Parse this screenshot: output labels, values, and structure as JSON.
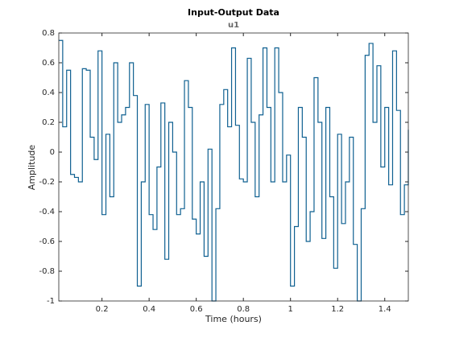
{
  "chart_data": {
    "type": "stairs",
    "title": "Input-Output Data",
    "subtitle": "u1",
    "xlabel": "Time (hours)",
    "ylabel": "Amplitude",
    "color": "#0f6091",
    "xlim": [
      0.0167,
      1.5
    ],
    "ylim": [
      -1,
      0.8
    ],
    "xticks": [
      0.2,
      0.4,
      0.6,
      0.8,
      1,
      1.2,
      1.4
    ],
    "yticks": [
      -1,
      -0.8,
      -0.6,
      -0.4,
      -0.2,
      0,
      0.2,
      0.4,
      0.6,
      0.8
    ],
    "x": [
      0.0167,
      0.0333,
      0.05,
      0.0667,
      0.0833,
      0.1,
      0.1167,
      0.1333,
      0.15,
      0.1667,
      0.1833,
      0.2,
      0.2167,
      0.2333,
      0.25,
      0.2667,
      0.2833,
      0.3,
      0.3167,
      0.3333,
      0.35,
      0.3667,
      0.3833,
      0.4,
      0.4167,
      0.4333,
      0.45,
      0.4667,
      0.4833,
      0.5,
      0.5167,
      0.5333,
      0.55,
      0.5667,
      0.5833,
      0.6,
      0.6167,
      0.6333,
      0.65,
      0.6667,
      0.6833,
      0.7,
      0.7167,
      0.7333,
      0.75,
      0.7667,
      0.7833,
      0.8,
      0.8167,
      0.8333,
      0.85,
      0.8667,
      0.8833,
      0.9,
      0.9167,
      0.9333,
      0.95,
      0.9667,
      0.9833,
      1,
      1.0167,
      1.0333,
      1.05,
      1.0667,
      1.0833,
      1.1,
      1.1167,
      1.1333,
      1.15,
      1.1667,
      1.1833,
      1.2,
      1.2167,
      1.2333,
      1.25,
      1.2667,
      1.2833,
      1.3,
      1.3167,
      1.3333,
      1.35,
      1.3667,
      1.3833,
      1.4,
      1.4167,
      1.4333,
      1.45,
      1.4667,
      1.4833,
      1.5
    ],
    "values": [
      0.75,
      0.17,
      0.55,
      -0.15,
      -0.17,
      -0.2,
      0.56,
      0.55,
      0.1,
      -0.05,
      0.68,
      -0.42,
      0.12,
      -0.3,
      0.6,
      0.2,
      0.25,
      0.3,
      0.6,
      0.38,
      -0.9,
      -0.2,
      0.32,
      -0.42,
      -0.52,
      -0.1,
      0.33,
      -0.72,
      0.2,
      0.0,
      -0.42,
      -0.38,
      0.48,
      0.3,
      -0.45,
      -0.55,
      -0.2,
      -0.7,
      0.02,
      -1,
      -0.38,
      0.32,
      0.42,
      0.17,
      0.7,
      0.18,
      -0.18,
      -0.2,
      0.63,
      0.2,
      -0.3,
      0.25,
      0.7,
      0.3,
      -0.2,
      0.7,
      0.4,
      -0.2,
      -0.02,
      -0.9,
      -0.5,
      0.3,
      0.1,
      -0.6,
      -0.4,
      0.5,
      0.2,
      -0.58,
      0.3,
      -0.3,
      -0.78,
      0.12,
      -0.48,
      -0.2,
      0.1,
      -0.62,
      -1,
      -0.38,
      0.65,
      0.73,
      0.2,
      0.58,
      -0.1,
      0.3,
      -0.22,
      0.68,
      0.28,
      -0.42,
      -0.22,
      0.15
    ]
  }
}
